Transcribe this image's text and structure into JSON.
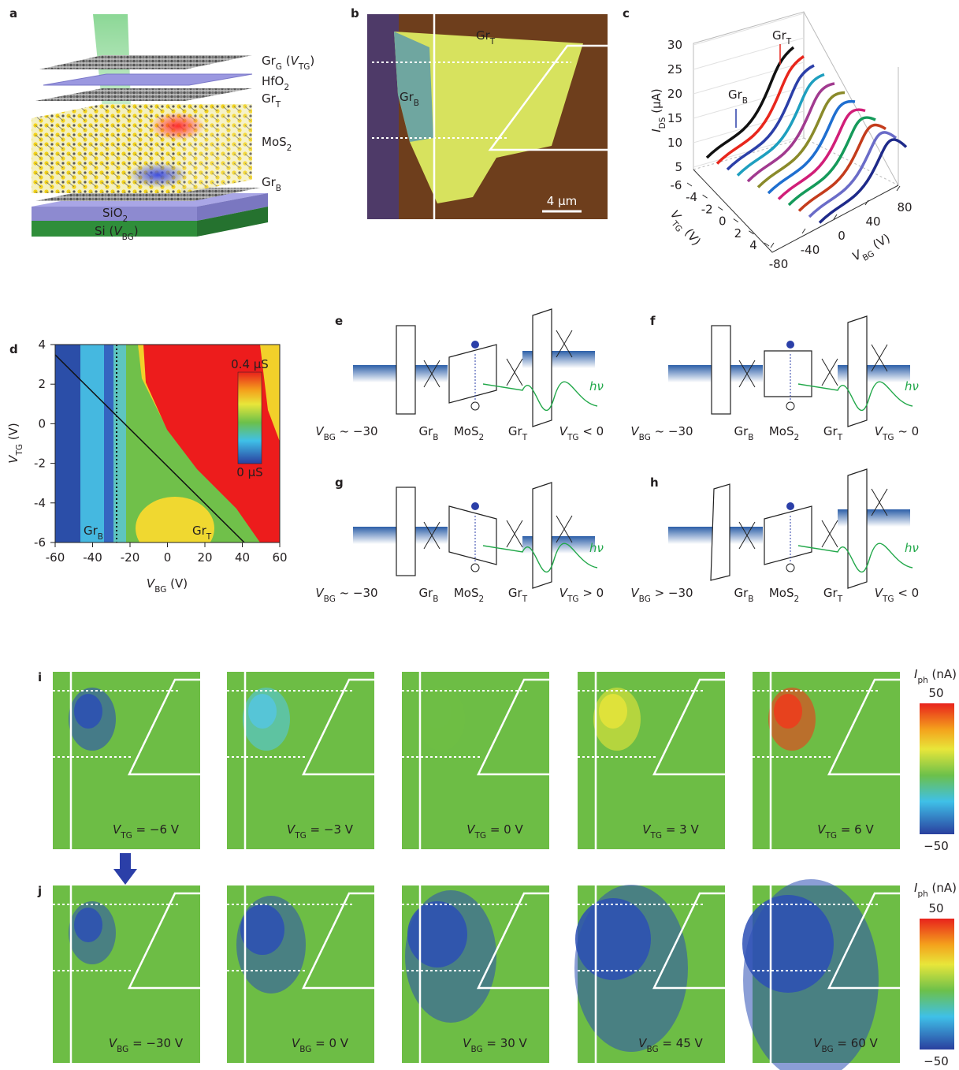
{
  "a": {
    "label": "a",
    "layers": [
      [
        {
          "t": "Gr"
        },
        {
          "s": "G"
        },
        {
          "t": " ("
        },
        {
          "i": "V"
        },
        {
          "s": "TG"
        },
        {
          "t": ")"
        }
      ],
      [
        {
          "t": "HfO"
        },
        {
          "s": "2"
        }
      ],
      [
        {
          "t": "Gr"
        },
        {
          "s": "T"
        }
      ],
      [
        {
          "t": "MoS"
        },
        {
          "s": "2"
        }
      ],
      [
        {
          "t": "Gr"
        },
        {
          "s": "B"
        }
      ],
      [
        {
          "t": "SiO"
        },
        {
          "s": "2"
        }
      ],
      [
        {
          "t": "Si ("
        },
        {
          "i": "V"
        },
        {
          "s": "BG"
        },
        {
          "t": ")"
        }
      ]
    ]
  },
  "b": {
    "label": "b",
    "top": [
      {
        "t": "Gr"
      },
      {
        "s": "T"
      }
    ],
    "left": [
      {
        "t": "Gr"
      },
      {
        "s": "B"
      }
    ],
    "scale": "4 μm"
  },
  "c": {
    "label": "c",
    "zlabel": [
      {
        "i": "I"
      },
      {
        "s": "DS"
      },
      {
        "t": " (μA)"
      }
    ],
    "zticks": [
      5,
      10,
      15,
      20,
      25,
      30
    ],
    "ylabel": [
      {
        "i": "V"
      },
      {
        "s": "TG"
      },
      {
        "t": " (V)"
      }
    ],
    "yticks": [
      -6,
      -4,
      -2,
      0,
      2,
      4
    ],
    "xlabel": [
      {
        "i": "V"
      },
      {
        "s": "BG"
      },
      {
        "t": " (V)"
      }
    ],
    "xticks": [
      -80,
      -40,
      0,
      40,
      80
    ],
    "note_top": [
      {
        "t": "Gr"
      },
      {
        "s": "T"
      }
    ],
    "note_left": [
      {
        "t": "Gr"
      },
      {
        "s": "B"
      }
    ],
    "colors": [
      "#111111",
      "#e8261c",
      "#2b3fa8",
      "#1e9fbf",
      "#a13a8f",
      "#8a8a2a",
      "#1f6fd0",
      "#d11e78",
      "#159a5a",
      "#c43c1c",
      "#6a6cc8",
      "#1e2a8a"
    ]
  },
  "d": {
    "label": "d",
    "xlim": [
      -60,
      60
    ],
    "ylim": [
      -6,
      4
    ],
    "xticks": [
      -60,
      -40,
      -20,
      0,
      20,
      40,
      60
    ],
    "yticks": [
      -6,
      -4,
      -2,
      0,
      2,
      4
    ],
    "xlabel": [
      {
        "i": "V"
      },
      {
        "s": "BG"
      },
      {
        "t": " (V)"
      }
    ],
    "ylabel": [
      {
        "i": "V"
      },
      {
        "s": "TG"
      },
      {
        "t": " (V)"
      }
    ],
    "cbar_top": "0.4 μS",
    "cbar_bottom": "0 μS",
    "note_left": [
      {
        "t": "Gr"
      },
      {
        "s": "B"
      }
    ],
    "note_right": [
      {
        "t": "Gr"
      },
      {
        "s": "T"
      }
    ]
  },
  "bands": [
    {
      "label": "e",
      "photon": "hν",
      "labels": [
        [
          {
            "i": "V"
          },
          {
            "s": "BG"
          },
          {
            "t": " ~ −30"
          }
        ],
        [
          {
            "t": "Gr"
          },
          {
            "s": "B"
          }
        ],
        [
          {
            "t": "MoS"
          },
          {
            "s": "2"
          }
        ],
        [
          {
            "t": "Gr"
          },
          {
            "s": "T"
          }
        ],
        [
          {
            "i": "V"
          },
          {
            "s": "TG"
          },
          {
            "t": " < 0"
          }
        ]
      ]
    },
    {
      "label": "f",
      "photon": "hν",
      "labels": [
        [
          {
            "i": "V"
          },
          {
            "s": "BG"
          },
          {
            "t": " ~ −30"
          }
        ],
        [
          {
            "t": "Gr"
          },
          {
            "s": "B"
          }
        ],
        [
          {
            "t": "MoS"
          },
          {
            "s": "2"
          }
        ],
        [
          {
            "t": "Gr"
          },
          {
            "s": "T"
          }
        ],
        [
          {
            "i": "V"
          },
          {
            "s": "TG"
          },
          {
            "t": " ~ 0"
          }
        ]
      ]
    },
    {
      "label": "g",
      "photon": "hν",
      "labels": [
        [
          {
            "i": "V"
          },
          {
            "s": "BG"
          },
          {
            "t": " ~ −30"
          }
        ],
        [
          {
            "t": "Gr"
          },
          {
            "s": "B"
          }
        ],
        [
          {
            "t": "MoS"
          },
          {
            "s": "2"
          }
        ],
        [
          {
            "t": "Gr"
          },
          {
            "s": "T"
          }
        ],
        [
          {
            "i": "V"
          },
          {
            "s": "TG"
          },
          {
            "t": " > 0"
          }
        ]
      ]
    },
    {
      "label": "h",
      "photon": "hν",
      "labels": [
        [
          {
            "i": "V"
          },
          {
            "s": "BG"
          },
          {
            "t": " > −30"
          }
        ],
        [
          {
            "t": "Gr"
          },
          {
            "s": "B"
          }
        ],
        [
          {
            "t": "MoS"
          },
          {
            "s": "2"
          }
        ],
        [
          {
            "t": "Gr"
          },
          {
            "s": "T"
          }
        ],
        [
          {
            "i": "V"
          },
          {
            "s": "TG"
          },
          {
            "t": " < 0"
          }
        ]
      ]
    }
  ],
  "maps": [
    {
      "label": "i",
      "cbar_title": [
        {
          "i": "I"
        },
        {
          "s": "ph"
        },
        {
          "t": " (nA)"
        }
      ],
      "cbar_top": "50",
      "cbar_bottom": "−50",
      "panels": [
        {
          "caption": [
            {
              "i": "V"
            },
            {
              "s": "TG"
            },
            {
              "t": " = −6 V"
            }
          ],
          "color": "#2c4fb5"
        },
        {
          "caption": [
            {
              "i": "V"
            },
            {
              "s": "TG"
            },
            {
              "t": " = −3 V"
            }
          ],
          "color": "#55c6e0"
        },
        {
          "caption": [
            {
              "i": "V"
            },
            {
              "s": "TG"
            },
            {
              "t": " = 0 V"
            }
          ],
          "color": "#6fbe45"
        },
        {
          "caption": [
            {
              "i": "V"
            },
            {
              "s": "TG"
            },
            {
              "t": " = 3 V"
            }
          ],
          "color": "#e6e43a"
        },
        {
          "caption": [
            {
              "i": "V"
            },
            {
              "s": "TG"
            },
            {
              "t": " = 6 V"
            }
          ],
          "color": "#ee3b1c"
        }
      ]
    },
    {
      "label": "j",
      "cbar_title": [
        {
          "i": "I"
        },
        {
          "s": "ph"
        },
        {
          "t": " (nA)"
        }
      ],
      "cbar_top": "50",
      "cbar_bottom": "−50",
      "panels": [
        {
          "caption": [
            {
              "i": "V"
            },
            {
              "s": "BG"
            },
            {
              "t": " = −30 V"
            }
          ],
          "color": "#2c4fb5"
        },
        {
          "caption": [
            {
              "i": "V"
            },
            {
              "s": "BG"
            },
            {
              "t": " = 0 V"
            }
          ],
          "color": "#2c4fb5"
        },
        {
          "caption": [
            {
              "i": "V"
            },
            {
              "s": "BG"
            },
            {
              "t": " = 30 V"
            }
          ],
          "color": "#2c4fb5"
        },
        {
          "caption": [
            {
              "i": "V"
            },
            {
              "s": "BG"
            },
            {
              "t": " = 45 V"
            }
          ],
          "color": "#2c4fb5"
        },
        {
          "caption": [
            {
              "i": "V"
            },
            {
              "s": "BG"
            },
            {
              "t": " = 60 V"
            }
          ],
          "color": "#2c4fb5"
        }
      ]
    }
  ]
}
